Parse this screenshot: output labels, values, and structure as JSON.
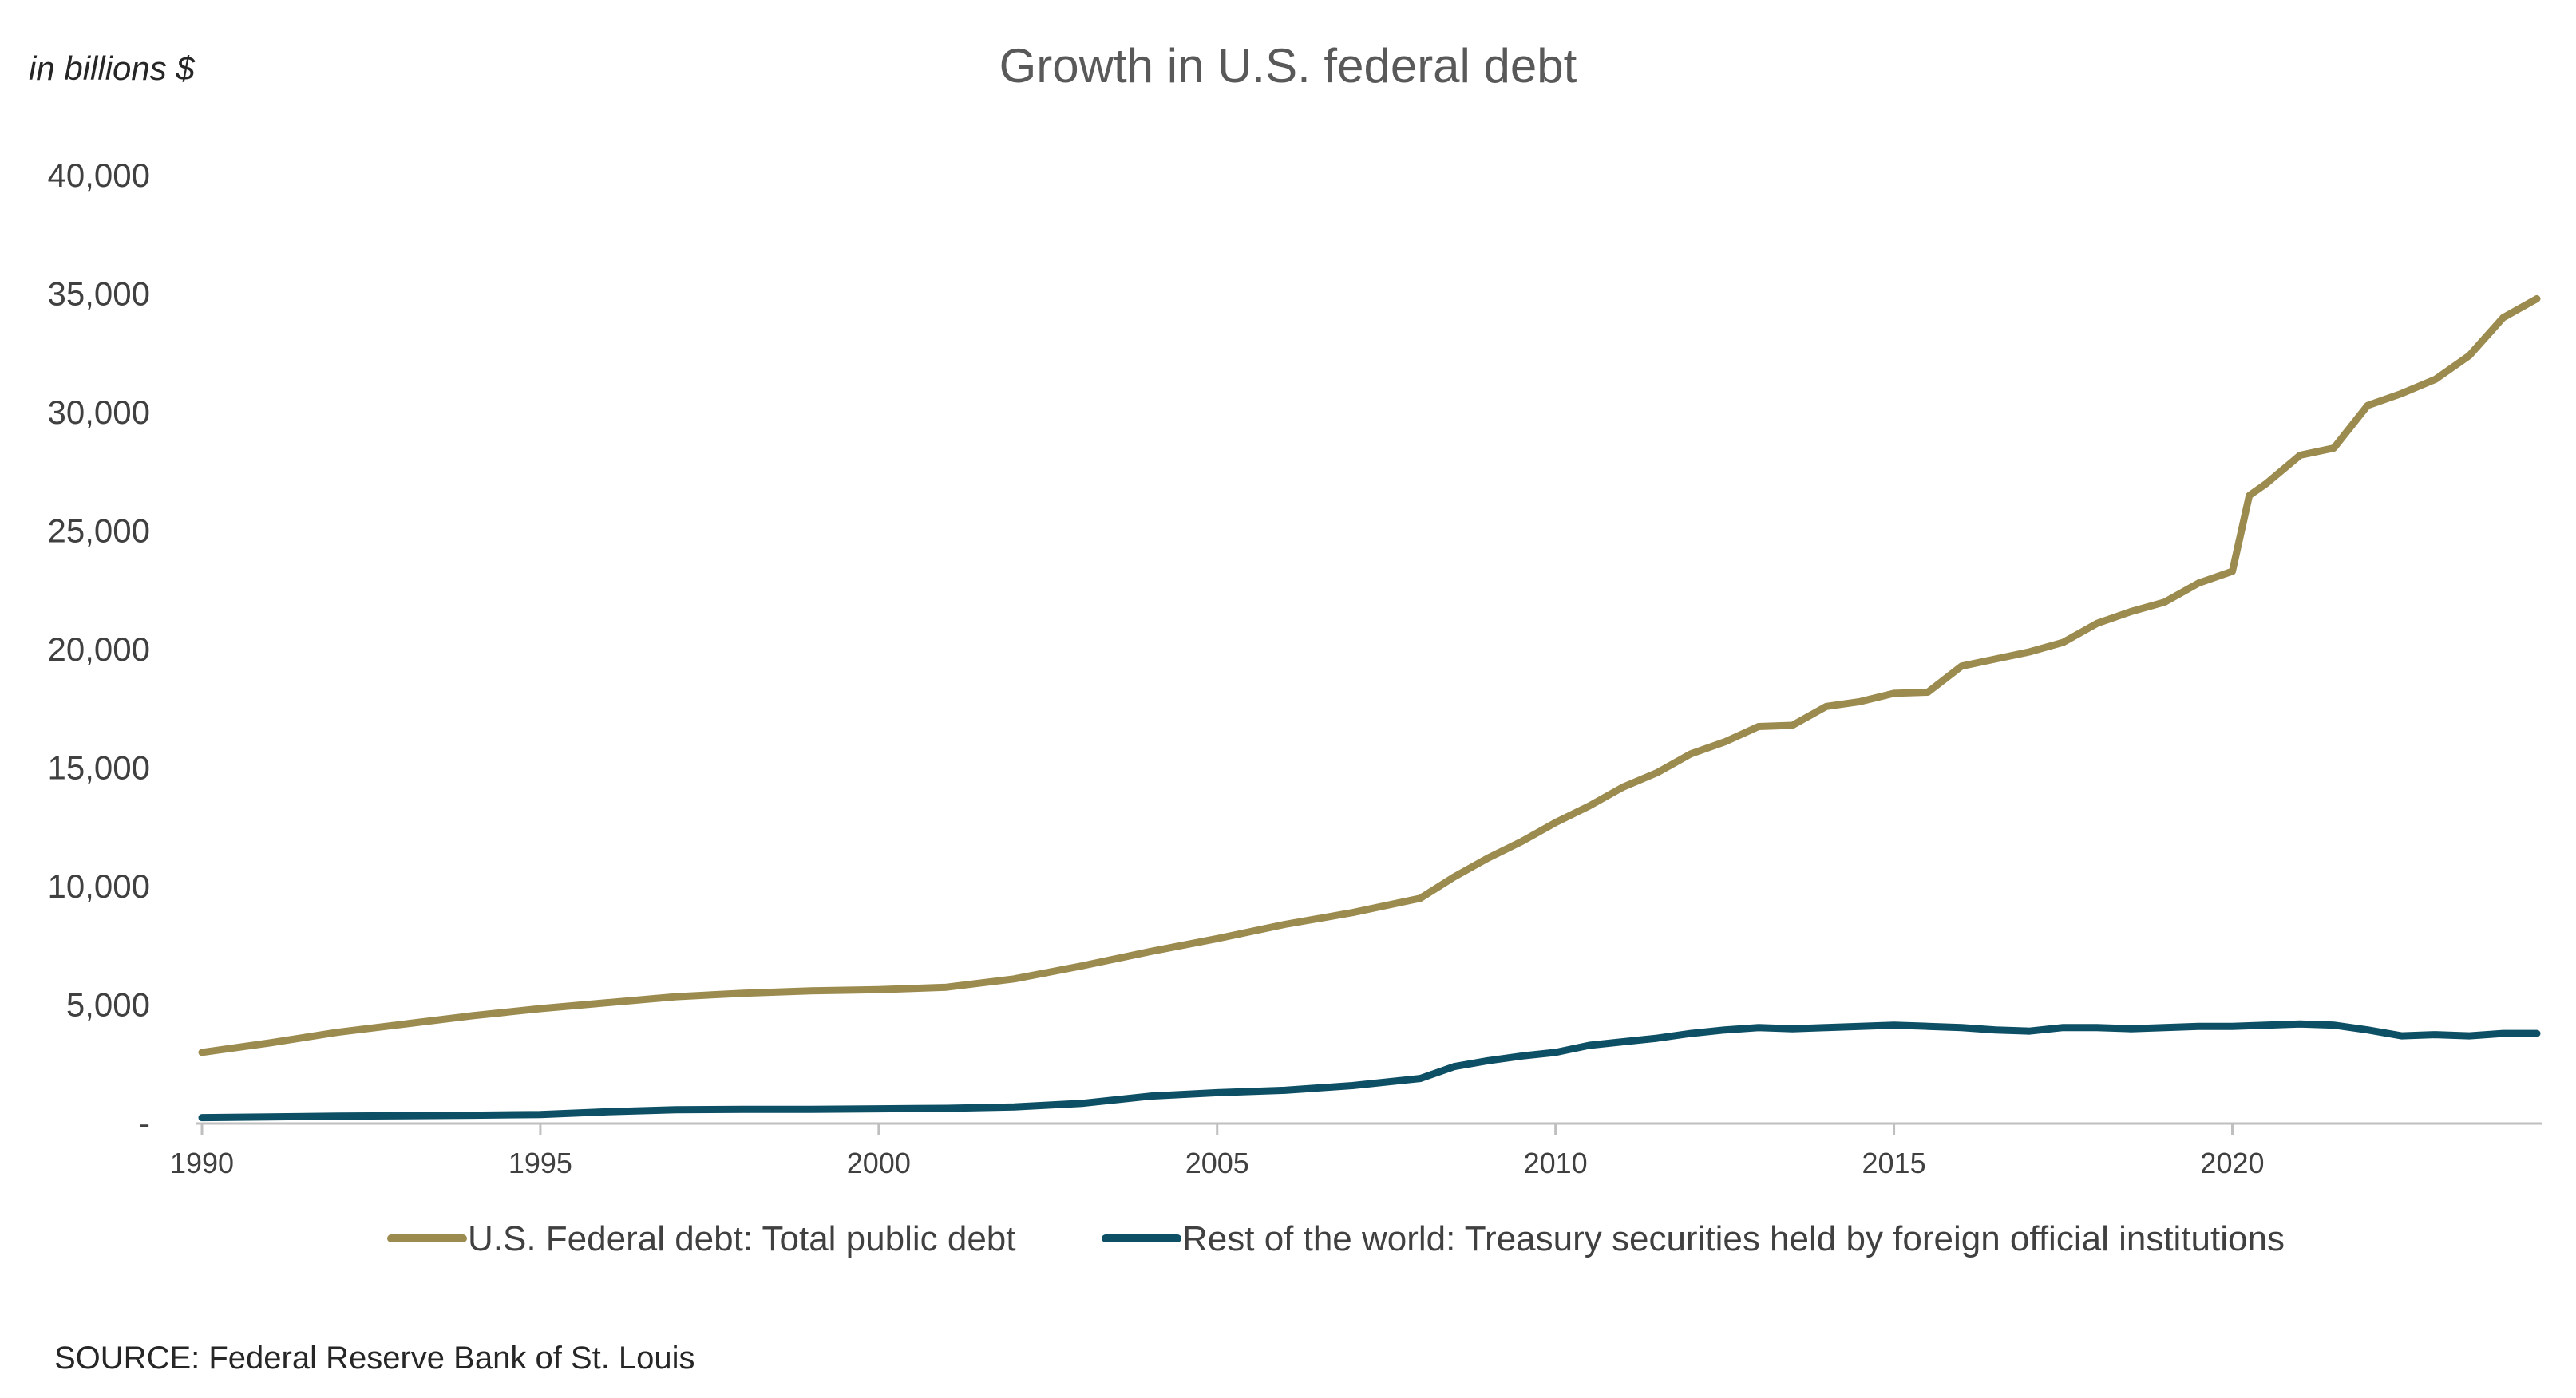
{
  "chart_data": {
    "type": "line",
    "title": "Growth in U.S. federal debt",
    "unit_label": "in billions $",
    "xlabel": "",
    "ylabel": "",
    "xlim": [
      1990,
      2024.5
    ],
    "ylim": [
      0,
      40000
    ],
    "y_ticks": [
      {
        "value": 0,
        "label": "-"
      },
      {
        "value": 5000,
        "label": "5,000"
      },
      {
        "value": 10000,
        "label": "10,000"
      },
      {
        "value": 15000,
        "label": "15,000"
      },
      {
        "value": 20000,
        "label": "20,000"
      },
      {
        "value": 25000,
        "label": "25,000"
      },
      {
        "value": 30000,
        "label": "30,000"
      },
      {
        "value": 35000,
        "label": "35,000"
      },
      {
        "value": 40000,
        "label": "40,000"
      }
    ],
    "x_ticks": [
      {
        "value": 1990,
        "label": "1990"
      },
      {
        "value": 1995,
        "label": "1995"
      },
      {
        "value": 2000,
        "label": "2000"
      },
      {
        "value": 2005,
        "label": "2005"
      },
      {
        "value": 2010,
        "label": "2010"
      },
      {
        "value": 2015,
        "label": "2015"
      },
      {
        "value": 2020,
        "label": "2020"
      }
    ],
    "grid": false,
    "legend_position": "bottom",
    "series": [
      {
        "name": "U.S. Federal debt: Total public debt",
        "color": "#9C8B4E",
        "points": [
          [
            1990.0,
            3000
          ],
          [
            1991.0,
            3400
          ],
          [
            1992.0,
            3850
          ],
          [
            1993.0,
            4200
          ],
          [
            1994.0,
            4550
          ],
          [
            1995.0,
            4850
          ],
          [
            1996.0,
            5100
          ],
          [
            1997.0,
            5350
          ],
          [
            1998.0,
            5500
          ],
          [
            1999.0,
            5600
          ],
          [
            2000.0,
            5650
          ],
          [
            2000.5,
            5700
          ],
          [
            2001.0,
            5750
          ],
          [
            2002.0,
            6100
          ],
          [
            2003.0,
            6650
          ],
          [
            2004.0,
            7250
          ],
          [
            2005.0,
            7800
          ],
          [
            2006.0,
            8400
          ],
          [
            2007.0,
            8900
          ],
          [
            2008.0,
            9500
          ],
          [
            2008.5,
            10400
          ],
          [
            2009.0,
            11200
          ],
          [
            2009.5,
            11900
          ],
          [
            2010.0,
            12700
          ],
          [
            2010.5,
            13400
          ],
          [
            2011.0,
            14200
          ],
          [
            2011.5,
            14800
          ],
          [
            2012.0,
            15600
          ],
          [
            2012.5,
            16100
          ],
          [
            2013.0,
            16750
          ],
          [
            2013.5,
            16800
          ],
          [
            2014.0,
            17600
          ],
          [
            2014.5,
            17800
          ],
          [
            2015.0,
            18150
          ],
          [
            2015.5,
            18200
          ],
          [
            2016.0,
            19300
          ],
          [
            2016.5,
            19600
          ],
          [
            2017.0,
            19900
          ],
          [
            2017.5,
            20300
          ],
          [
            2018.0,
            21100
          ],
          [
            2018.5,
            21600
          ],
          [
            2019.0,
            22000
          ],
          [
            2019.5,
            22800
          ],
          [
            2020.0,
            23300
          ],
          [
            2020.25,
            26500
          ],
          [
            2020.5,
            27000
          ],
          [
            2021.0,
            28200
          ],
          [
            2021.5,
            28500
          ],
          [
            2022.0,
            30300
          ],
          [
            2022.5,
            30800
          ],
          [
            2023.0,
            31400
          ],
          [
            2023.5,
            32400
          ],
          [
            2024.0,
            34000
          ],
          [
            2024.5,
            34800
          ]
        ]
      },
      {
        "name": "Rest of the world: Treasury securities held by foreign official institutions",
        "color": "#0D4F64",
        "points": [
          [
            1990.0,
            250
          ],
          [
            1991.0,
            280
          ],
          [
            1992.0,
            310
          ],
          [
            1993.0,
            330
          ],
          [
            1994.0,
            350
          ],
          [
            1995.0,
            380
          ],
          [
            1996.0,
            500
          ],
          [
            1997.0,
            580
          ],
          [
            1998.0,
            600
          ],
          [
            1999.0,
            600
          ],
          [
            2000.0,
            620
          ],
          [
            2001.0,
            640
          ],
          [
            2002.0,
            700
          ],
          [
            2003.0,
            850
          ],
          [
            2004.0,
            1150
          ],
          [
            2005.0,
            1300
          ],
          [
            2006.0,
            1400
          ],
          [
            2007.0,
            1600
          ],
          [
            2008.0,
            1900
          ],
          [
            2008.5,
            2400
          ],
          [
            2009.0,
            2650
          ],
          [
            2009.5,
            2850
          ],
          [
            2010.0,
            3000
          ],
          [
            2010.5,
            3300
          ],
          [
            2011.0,
            3450
          ],
          [
            2011.5,
            3600
          ],
          [
            2012.0,
            3800
          ],
          [
            2012.5,
            3950
          ],
          [
            2013.0,
            4050
          ],
          [
            2013.5,
            4000
          ],
          [
            2014.0,
            4050
          ],
          [
            2014.5,
            4100
          ],
          [
            2015.0,
            4150
          ],
          [
            2015.5,
            4100
          ],
          [
            2016.0,
            4050
          ],
          [
            2016.5,
            3950
          ],
          [
            2017.0,
            3900
          ],
          [
            2017.5,
            4050
          ],
          [
            2018.0,
            4050
          ],
          [
            2018.5,
            4000
          ],
          [
            2019.0,
            4050
          ],
          [
            2019.5,
            4100
          ],
          [
            2020.0,
            4100
          ],
          [
            2020.5,
            4150
          ],
          [
            2021.0,
            4200
          ],
          [
            2021.5,
            4150
          ],
          [
            2022.0,
            3950
          ],
          [
            2022.5,
            3700
          ],
          [
            2023.0,
            3750
          ],
          [
            2023.5,
            3700
          ],
          [
            2024.0,
            3800
          ],
          [
            2024.5,
            3800
          ]
        ]
      }
    ]
  },
  "source_note": "SOURCE: Federal Reserve Bank of St. Louis"
}
